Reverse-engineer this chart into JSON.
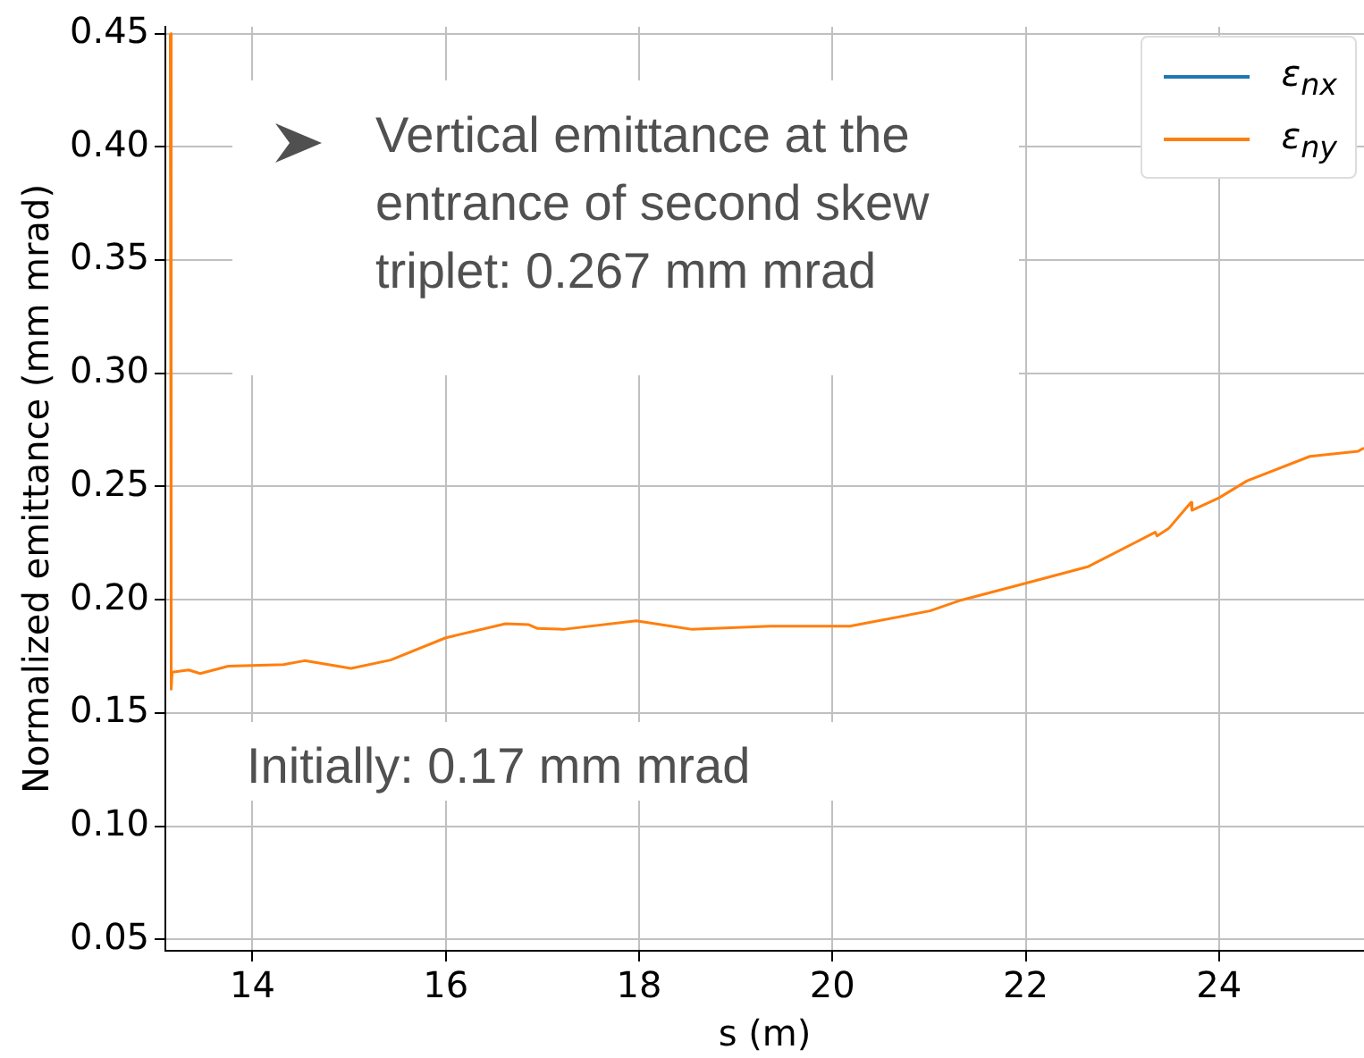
{
  "chart_data": {
    "type": "line",
    "xlabel": "s (m)",
    "ylabel": "Normalized emittance (mm mrad)",
    "x": [
      13.15,
      13.16,
      13.17,
      13.34,
      13.46,
      13.75,
      14.32,
      14.54,
      15.02,
      15.43,
      16.0,
      16.62,
      16.86,
      16.95,
      17.23,
      17.97,
      18.54,
      19.36,
      20.18,
      21.01,
      21.33,
      21.99,
      22.65,
      23.34,
      23.36,
      23.48,
      23.67,
      23.71,
      23.72,
      24.0,
      24.29,
      24.94,
      25.44,
      25.5
    ],
    "series": [
      {
        "name": "ε$_{nx}$",
        "color": "#1f77b4",
        "values": [
          null,
          null,
          null,
          null,
          null,
          null,
          null,
          null,
          null,
          null,
          null,
          null,
          null,
          null,
          null,
          null,
          null,
          null,
          null,
          null,
          null,
          null,
          null,
          null,
          null,
          null,
          null,
          null,
          null,
          null,
          null,
          null,
          null,
          null
        ]
      },
      {
        "name": "ε$_{ny}$",
        "color": "#ff7f0e",
        "values": [
          0.45,
          0.1605,
          0.168,
          0.169,
          0.1674,
          0.1707,
          0.1714,
          0.1731,
          0.1697,
          0.1734,
          0.1832,
          0.1894,
          0.189,
          0.1873,
          0.187,
          0.1907,
          0.187,
          0.1883,
          0.1883,
          0.1951,
          0.1998,
          0.2072,
          0.2147,
          0.2298,
          0.2282,
          0.2315,
          0.241,
          0.243,
          0.2395,
          0.245,
          0.2525,
          0.2633,
          0.2656,
          0.267
        ]
      }
    ],
    "xlim": [
      13.1,
      25.5
    ],
    "xticks": [
      14,
      16,
      18,
      20,
      22,
      24
    ],
    "ylim": [
      0.045,
      0.453
    ],
    "yticks": [
      {
        "value": 0.05,
        "label": "0.05"
      },
      {
        "value": 0.1,
        "label": "0.10"
      },
      {
        "value": 0.15,
        "label": "0.15"
      },
      {
        "value": 0.2,
        "label": "0.20"
      },
      {
        "value": 0.25,
        "label": "0.25"
      },
      {
        "value": 0.3,
        "label": "0.30"
      },
      {
        "value": 0.35,
        "label": "0.35"
      },
      {
        "value": 0.4,
        "label": "0.40"
      },
      {
        "value": 0.45,
        "label": "0.45"
      }
    ],
    "grid": true,
    "legend": "top right",
    "marker": "none",
    "line_style": "solid",
    "annotations": [
      "Vertical emittance at the entrance of second skew triplet: 0.267 mm mrad",
      "Initially: 0.17 mm mrad"
    ]
  }
}
